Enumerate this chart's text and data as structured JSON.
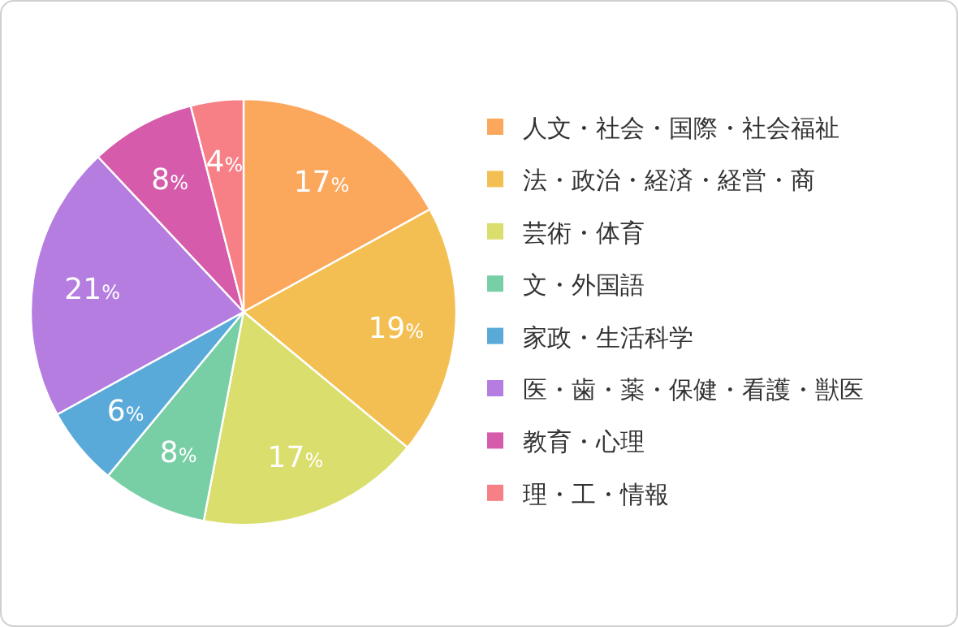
{
  "chart_data": {
    "type": "pie",
    "categories": [
      "人文・社会・国際・社会福祉",
      "法・政治・経済・経営・商",
      "芸術・体育",
      "文・外国語",
      "家政・生活科学",
      "医・歯・薬・保健・看護・獣医",
      "教育・心理",
      "理・工・情報"
    ],
    "values": [
      17,
      19,
      17,
      8,
      6,
      21,
      8,
      4
    ],
    "colors": [
      "#fba85c",
      "#f4bf52",
      "#dade6c",
      "#79cfa5",
      "#5aaad9",
      "#b57de0",
      "#d75bab",
      "#f77f86"
    ],
    "value_labels": [
      "17%",
      "19%",
      "17%",
      "8%",
      "6%",
      "21%",
      "8%",
      "4%"
    ],
    "legend": "right"
  }
}
